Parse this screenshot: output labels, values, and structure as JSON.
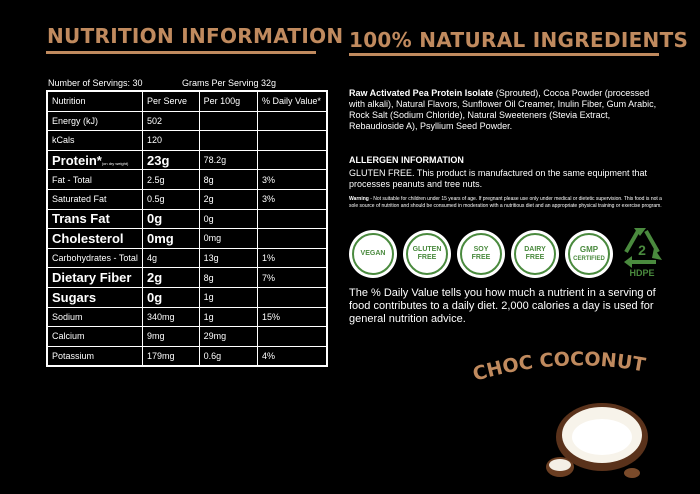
{
  "headings": {
    "nutrition": "NUTRITION INFORMATION",
    "natural": "100% NATURAL INGREDIENTS"
  },
  "serving": {
    "servings": "Number of Servings: 30",
    "grams": "Grams Per Serving  32g"
  },
  "table": {
    "header": [
      "Nutrition",
      "Per Serve",
      "Per 100g",
      "% Daily Value*"
    ],
    "rows": [
      {
        "name": "Energy (kJ)",
        "serve": "502",
        "per100": "",
        "dv": ""
      },
      {
        "name": "kCals",
        "serve": "120",
        "per100": "",
        "dv": ""
      },
      {
        "name": "Protein*",
        "note": "(on dry weight)",
        "serve": "23g",
        "per100": "78.2g",
        "dv": ""
      },
      {
        "name": "Fat - Total",
        "serve": "2.5g",
        "per100": "8g",
        "dv": "3%"
      },
      {
        "name": "Saturated Fat",
        "serve": "0.5g",
        "per100": "2g",
        "dv": "3%"
      },
      {
        "name": "Trans Fat",
        "serve": "0g",
        "per100": "0g",
        "dv": ""
      },
      {
        "name": "Cholesterol",
        "serve": "0mg",
        "per100": "0mg",
        "dv": ""
      },
      {
        "name": "Carbohydrates - Total",
        "serve": "4g",
        "per100": "13g",
        "dv": "1%"
      },
      {
        "name": "Dietary Fiber",
        "serve": "2g",
        "per100": "8g",
        "dv": "7%"
      },
      {
        "name": "Sugars",
        "serve": "0g",
        "per100": "1g",
        "dv": ""
      },
      {
        "name": "Sodium",
        "serve": "340mg",
        "per100": "1g",
        "dv": "15%"
      },
      {
        "name": "Calcium",
        "serve": "9mg",
        "per100": "29mg",
        "dv": ""
      },
      {
        "name": "Potassium",
        "serve": "179mg",
        "per100": "0.6g",
        "dv": "4%"
      }
    ]
  },
  "ingredients": {
    "bold": "Raw Activated Pea Protein Isolate",
    "rest": " (Sprouted), Cocoa Powder (processed with alkali), Natural Flavors, Sunflower Oil Creamer, Inulin Fiber, Gum Arabic, Rock Salt (Sodium Chloride), Natural Sweeteners (Stevia Extract, Rebaudioside A), Psyllium Seed Powder."
  },
  "allergen": {
    "heading": "ALLERGEN INFORMATION",
    "text": "GLUTEN FREE. This product is manufactured on the same equipment that processes peanuts and tree nuts."
  },
  "warning": {
    "label": "Warning",
    "text": " - Not suitable for children under 15 years of age. If pregnant please use only under medical or dietetic supervision. This food is not a sole source of nutrition and should be consumed in moderation with a nutritious diet and an appropriate physical training or exercise program."
  },
  "badges": [
    {
      "line1": "VEGAN",
      "line2": ""
    },
    {
      "line1": "GLUTEN",
      "line2": "FREE"
    },
    {
      "line1": "SOY",
      "line2": "FREE"
    },
    {
      "line1": "DAIRY",
      "line2": "FREE"
    },
    {
      "line1": "GMP",
      "line2": "CERTIFIED"
    }
  ],
  "recycle": {
    "number": "2",
    "label": "HDPE"
  },
  "daily_value": "The % Daily Value tells you how much a nutrient in a serving of food contributes to a daily diet. 2,000 calories a day is used for general nutrition advice.",
  "flavor": "CHOC COCONUT",
  "colors": {
    "accent": "#c08a5e",
    "badge_green": "#4a8a3e",
    "background": "#000000"
  }
}
